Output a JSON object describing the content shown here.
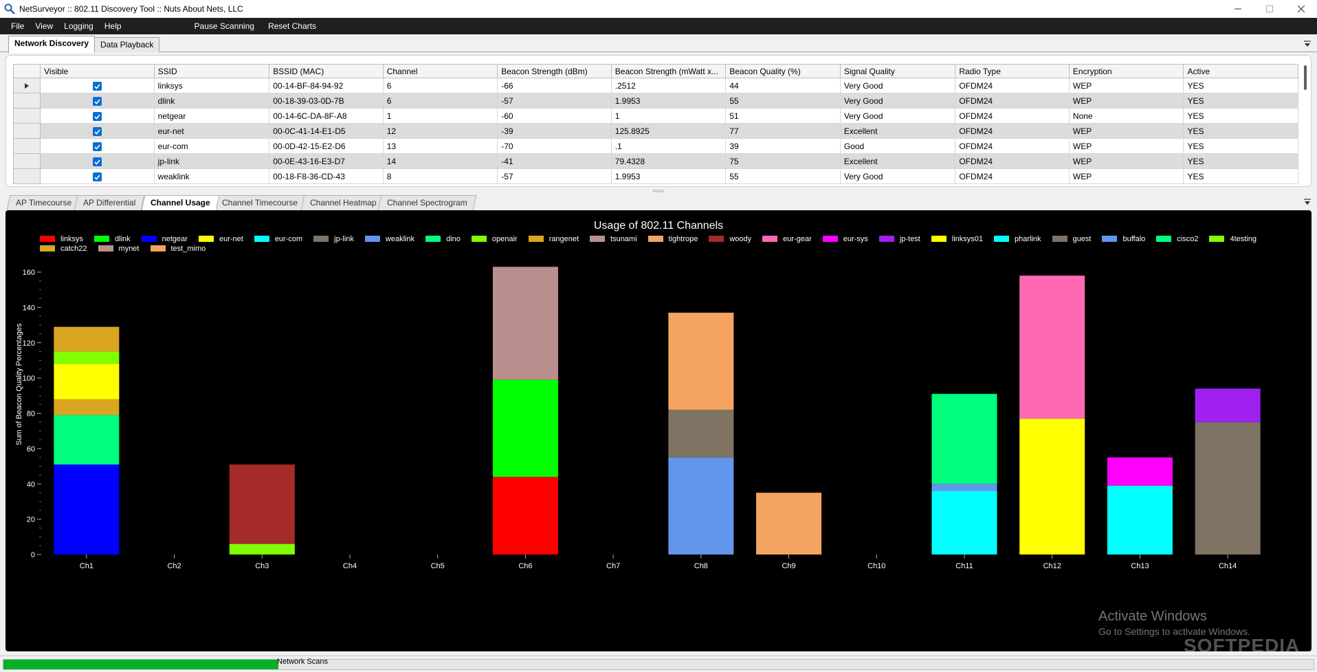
{
  "window": {
    "title": "NetSurveyor :: 802.11 Discovery Tool :: Nuts About Nets, LLC",
    "controls": [
      "minimize",
      "maximize",
      "close"
    ]
  },
  "menu": {
    "items": [
      "File",
      "View",
      "Logging",
      "Help"
    ],
    "actions": [
      "Pause Scanning",
      "Reset Charts"
    ]
  },
  "top_tabs": {
    "items": [
      "Network Discovery",
      "Data Playback"
    ],
    "active": "Network Discovery"
  },
  "table": {
    "columns": [
      "Visible",
      "SSID",
      "BSSID (MAC)",
      "Channel",
      "Beacon Strength (dBm)",
      "Beacon Strength (mWatt x...",
      "Beacon Quality (%)",
      "Signal Quality",
      "Radio Type",
      "Encryption",
      "Active"
    ],
    "rows": [
      {
        "ssid": "linksys",
        "bssid": "00-14-BF-84-94-92",
        "channel": "6",
        "dbm": "-66",
        "mwatt": ".2512",
        "quality": "44",
        "signal": "Very Good",
        "radio": "OFDM24",
        "enc": "WEP",
        "active": "YES",
        "checked": true
      },
      {
        "ssid": "dlink",
        "bssid": "00-18-39-03-0D-7B",
        "channel": "6",
        "dbm": "-57",
        "mwatt": "1.9953",
        "quality": "55",
        "signal": "Very Good",
        "radio": "OFDM24",
        "enc": "WEP",
        "active": "YES",
        "checked": true
      },
      {
        "ssid": "netgear",
        "bssid": "00-14-6C-DA-8F-A8",
        "channel": "1",
        "dbm": "-60",
        "mwatt": "1",
        "quality": "51",
        "signal": "Very Good",
        "radio": "OFDM24",
        "enc": "None",
        "active": "YES",
        "checked": true
      },
      {
        "ssid": "eur-net",
        "bssid": "00-0C-41-14-E1-D5",
        "channel": "12",
        "dbm": "-39",
        "mwatt": "125.8925",
        "quality": "77",
        "signal": "Excellent",
        "radio": "OFDM24",
        "enc": "WEP",
        "active": "YES",
        "checked": true
      },
      {
        "ssid": "eur-com",
        "bssid": "00-0D-42-15-E2-D6",
        "channel": "13",
        "dbm": "-70",
        "mwatt": ".1",
        "quality": "39",
        "signal": "Good",
        "radio": "OFDM24",
        "enc": "WEP",
        "active": "YES",
        "checked": true
      },
      {
        "ssid": "jp-link",
        "bssid": "00-0E-43-16-E3-D7",
        "channel": "14",
        "dbm": "-41",
        "mwatt": "79.4328",
        "quality": "75",
        "signal": "Excellent",
        "radio": "OFDM24",
        "enc": "WEP",
        "active": "YES",
        "checked": true
      },
      {
        "ssid": "weaklink",
        "bssid": "00-18-F8-36-CD-43",
        "channel": "8",
        "dbm": "-57",
        "mwatt": "1.9953",
        "quality": "55",
        "signal": "Very Good",
        "radio": "OFDM24",
        "enc": "WEP",
        "active": "YES",
        "checked": true
      }
    ]
  },
  "chart_tabs": {
    "items": [
      "AP Timecourse",
      "AP Differential",
      "Channel Usage",
      "Channel Timecourse",
      "Channel Heatmap",
      "Channel Spectrogram"
    ],
    "active": "Channel Usage"
  },
  "chart_data": {
    "type": "bar",
    "stacked": true,
    "title": "Usage of 802.11 Channels",
    "xlabel": "",
    "ylabel": "Sum of Beacon Quality Percentages",
    "ylim": [
      0,
      160
    ],
    "yticks": [
      0,
      20,
      40,
      60,
      80,
      100,
      120,
      140,
      160
    ],
    "categories": [
      "Ch1",
      "Ch2",
      "Ch3",
      "Ch4",
      "Ch5",
      "Ch6",
      "Ch7",
      "Ch8",
      "Ch9",
      "Ch10",
      "Ch11",
      "Ch12",
      "Ch13",
      "Ch14"
    ],
    "legend": [
      {
        "name": "linksys",
        "color": "#ff0000"
      },
      {
        "name": "dlink",
        "color": "#00ff00"
      },
      {
        "name": "netgear",
        "color": "#0000ff"
      },
      {
        "name": "eur-net",
        "color": "#ffff00"
      },
      {
        "name": "eur-com",
        "color": "#00ffff"
      },
      {
        "name": "jp-link",
        "color": "#7f7363"
      },
      {
        "name": "weaklink",
        "color": "#6495ed"
      },
      {
        "name": "dino",
        "color": "#00ff7f"
      },
      {
        "name": "openair",
        "color": "#7fff00"
      },
      {
        "name": "rangenet",
        "color": "#daa520"
      },
      {
        "name": "tsunami",
        "color": "#bc8f8f"
      },
      {
        "name": "tightrope",
        "color": "#f4a460"
      },
      {
        "name": "woody",
        "color": "#a52a2a"
      },
      {
        "name": "eur-gear",
        "color": "#ff69b4"
      },
      {
        "name": "eur-sys",
        "color": "#ff00ff"
      },
      {
        "name": "jp-test",
        "color": "#a020f0"
      },
      {
        "name": "linksys01",
        "color": "#ffff00"
      },
      {
        "name": "pharlink",
        "color": "#00ffff"
      },
      {
        "name": "guest",
        "color": "#7f7363"
      },
      {
        "name": "buffalo",
        "color": "#6495ed"
      },
      {
        "name": "cisco2",
        "color": "#00ff7f"
      },
      {
        "name": "4testing",
        "color": "#7fff00"
      },
      {
        "name": "catch22",
        "color": "#daa520"
      },
      {
        "name": "mynet",
        "color": "#bc8f8f"
      },
      {
        "name": "test_mimo",
        "color": "#f4a460"
      }
    ],
    "stacks": [
      [
        {
          "series": "netgear",
          "value": 51,
          "color": "#0000ff"
        },
        {
          "series": "cisco2",
          "value": 28,
          "color": "#00ff7f"
        },
        {
          "series": "catch22",
          "value": 9,
          "color": "#daa520"
        },
        {
          "series": "linksys01",
          "value": 20,
          "color": "#ffff00"
        },
        {
          "series": "4testing",
          "value": 7,
          "color": "#7fff00"
        },
        {
          "series": "rangenet",
          "value": 14,
          "color": "#daa520"
        }
      ],
      [],
      [
        {
          "series": "openair",
          "value": 6,
          "color": "#7fff00"
        },
        {
          "series": "woody",
          "value": 45,
          "color": "#a52a2a"
        }
      ],
      [],
      [],
      [
        {
          "series": "linksys",
          "value": 44,
          "color": "#ff0000"
        },
        {
          "series": "dlink",
          "value": 55,
          "color": "#00ff00"
        },
        {
          "series": "tsunami",
          "value": 64,
          "color": "#bc8f8f"
        }
      ],
      [],
      [
        {
          "series": "weaklink",
          "value": 55,
          "color": "#6495ed"
        },
        {
          "series": "guest",
          "value": 27,
          "color": "#7f7363"
        },
        {
          "series": "tightrope",
          "value": 55,
          "color": "#f4a460"
        }
      ],
      [
        {
          "series": "test_mimo",
          "value": 35,
          "color": "#f4a460"
        }
      ],
      [],
      [
        {
          "series": "pharlink",
          "value": 36,
          "color": "#00ffff"
        },
        {
          "series": "buffalo",
          "value": 4,
          "color": "#6495ed"
        },
        {
          "series": "dino",
          "value": 51,
          "color": "#00ff7f"
        }
      ],
      [
        {
          "series": "eur-net",
          "value": 77,
          "color": "#ffff00"
        },
        {
          "series": "eur-gear",
          "value": 81,
          "color": "#ff69b4"
        }
      ],
      [
        {
          "series": "eur-com",
          "value": 39,
          "color": "#00ffff"
        },
        {
          "series": "eur-sys",
          "value": 16,
          "color": "#ff00ff"
        }
      ],
      [
        {
          "series": "jp-link",
          "value": 75,
          "color": "#7f7363"
        },
        {
          "series": "jp-test",
          "value": 19,
          "color": "#a020f0"
        }
      ]
    ]
  },
  "watermark": {
    "line1": "Activate Windows",
    "line2": "Go to Settings to activate Windows.",
    "brand": "SOFTPEDIA"
  },
  "status": {
    "label": "Network Scans",
    "progress_percent": 21
  }
}
